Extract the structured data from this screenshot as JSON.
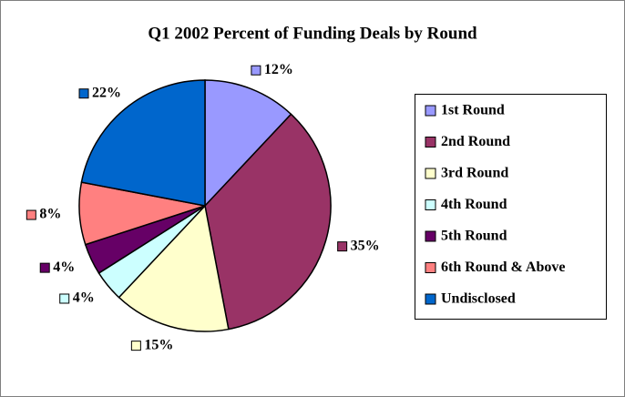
{
  "chart_data": {
    "type": "pie",
    "title": "Q1 2002 Percent of Funding Deals by Round",
    "categories": [
      "1st Round",
      "2nd Round",
      "3rd Round",
      "4th Round",
      "5th Round",
      "6th Round & Above",
      "Undisclosed"
    ],
    "values": [
      12,
      35,
      15,
      4,
      4,
      8,
      22
    ],
    "value_labels": [
      "12%",
      "35%",
      "15%",
      "4%",
      "4%",
      "8%",
      "22%"
    ],
    "colors": [
      "#9999ff",
      "#993366",
      "#ffffcc",
      "#ccffff",
      "#660066",
      "#ff8080",
      "#0066cc"
    ],
    "legend": "right"
  }
}
